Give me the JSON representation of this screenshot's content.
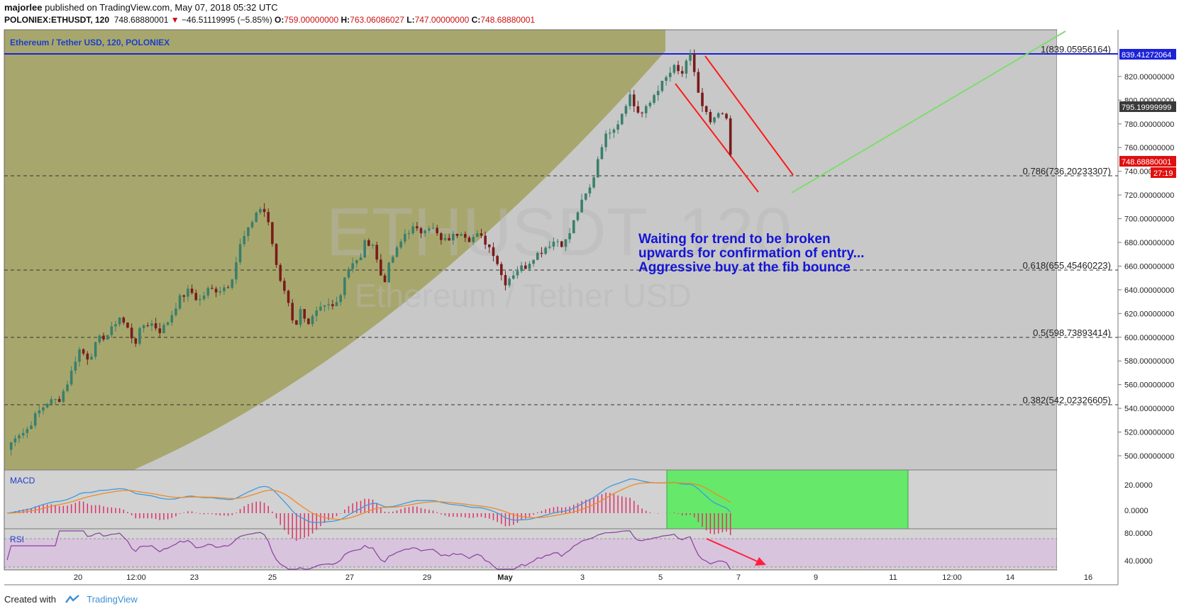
{
  "header": {
    "author": "majorlee",
    "published_text": "published on TradingView.com, May 07, 2018 05:32 UTC",
    "symbol": "POLONIEX:ETHUSDT, 120",
    "last": "748.68880001",
    "change_arrow": "▼",
    "change": "−46.51119995 (−5.85%)",
    "o_label": "O:",
    "o_value": "759.00000000",
    "h_label": "H:",
    "h_value": "763.06086027",
    "l_label": "L:",
    "l_value": "747.00000000",
    "c_label": "C:",
    "c_value": "748.68880001"
  },
  "chart_title": "Ethereum / Tether USD, 120, POLONIEX",
  "watermark": {
    "ticker": "ETHUSDT, 120",
    "name": "Ethereum / Tether USD"
  },
  "annotation": {
    "line1": "Waiting for trend to be broken",
    "line2": "upwards for confirmation of entry...",
    "line3": "Aggressive buy at the fib bounce"
  },
  "fib_levels": [
    {
      "label": "1(839.05956164)",
      "value": 839.06
    },
    {
      "label": "0.786(736.20233307)",
      "value": 736.2
    },
    {
      "label": "0.618(655.45460223)",
      "value": 655.45
    },
    {
      "label": "0.5(598.73893414)",
      "value": 598.74
    },
    {
      "label": "0.382(542.02326605)",
      "value": 542.02
    }
  ],
  "price_axis": {
    "ticks": [
      "820.00000000",
      "800.00000000",
      "780.00000000",
      "760.00000000",
      "740.00000000",
      "720.00000000",
      "700.00000000",
      "680.00000000",
      "660.00000000",
      "640.00000000",
      "620.00000000",
      "600.00000000",
      "580.00000000",
      "560.00000000",
      "540.00000000",
      "520.00000000",
      "500.00000000"
    ],
    "tag_high": "839.41272064",
    "tag_prev": "795.19999999",
    "tag_last": "748.68880001",
    "tag_countdown": "27:19"
  },
  "macd": {
    "label": "MACD",
    "ticks": [
      "20.0000",
      "0.0000"
    ]
  },
  "rsi": {
    "label": "RSI",
    "ticks": [
      "80.0000",
      "40.0000"
    ]
  },
  "time_axis": [
    "20",
    "12:00",
    "23",
    "25",
    "27",
    "29",
    "May",
    "3",
    "5",
    "7",
    "9",
    "11",
    "12:00",
    "14",
    "16"
  ],
  "footer": {
    "created_with": "Created with",
    "brand": "TradingView"
  },
  "colors": {
    "background": "#c8c8c8",
    "olive_fill": "#a7a76d",
    "candle_up": "#3a7f6c",
    "candle_down": "#7a1b1b",
    "annotation_text": "#1515d6",
    "channel_red": "#ff1a1a",
    "green_line": "#7fdc6e",
    "macd_line": "#3b9be0",
    "signal_line": "#f08a24",
    "histogram": "#e0306a",
    "rsi_line": "#8a3fa0",
    "rsi_band": "#d8c4dc",
    "green_box": "#66e86a",
    "high_line": "#1c22d8"
  },
  "chart_data": {
    "type": "candlestick",
    "title": "Ethereum / Tether USD, 120, POLONIEX",
    "ylim": [
      488,
      848
    ],
    "x_tick_labels": [
      "20",
      "12:00",
      "23",
      "25",
      "27",
      "29",
      "May",
      "3",
      "5",
      "7",
      "9",
      "11",
      "12:00",
      "14",
      "16"
    ],
    "close_series": [
      {
        "t": 0,
        "v": 505
      },
      {
        "t": 12,
        "v": 518
      },
      {
        "t": 25,
        "v": 520
      },
      {
        "t": 40,
        "v": 535
      },
      {
        "t": 55,
        "v": 545
      },
      {
        "t": 72,
        "v": 548
      },
      {
        "t": 85,
        "v": 565
      },
      {
        "t": 98,
        "v": 590
      },
      {
        "t": 112,
        "v": 582
      },
      {
        "t": 125,
        "v": 598
      },
      {
        "t": 140,
        "v": 603
      },
      {
        "t": 153,
        "v": 618
      },
      {
        "t": 165,
        "v": 607
      },
      {
        "t": 175,
        "v": 595
      },
      {
        "t": 185,
        "v": 610
      },
      {
        "t": 197,
        "v": 612
      },
      {
        "t": 210,
        "v": 605
      },
      {
        "t": 222,
        "v": 615
      },
      {
        "t": 235,
        "v": 632
      },
      {
        "t": 250,
        "v": 640
      },
      {
        "t": 262,
        "v": 630
      },
      {
        "t": 275,
        "v": 640
      },
      {
        "t": 290,
        "v": 640
      },
      {
        "t": 305,
        "v": 645
      },
      {
        "t": 312,
        "v": 660
      },
      {
        "t": 320,
        "v": 680
      },
      {
        "t": 330,
        "v": 690
      },
      {
        "t": 340,
        "v": 705
      },
      {
        "t": 350,
        "v": 710
      },
      {
        "t": 360,
        "v": 690
      },
      {
        "t": 366,
        "v": 668
      },
      {
        "t": 372,
        "v": 652
      },
      {
        "t": 380,
        "v": 640
      },
      {
        "t": 388,
        "v": 620
      },
      {
        "t": 395,
        "v": 610
      },
      {
        "t": 403,
        "v": 625
      },
      {
        "t": 410,
        "v": 605
      },
      {
        "t": 420,
        "v": 618
      },
      {
        "t": 430,
        "v": 625
      },
      {
        "t": 442,
        "v": 628
      },
      {
        "t": 455,
        "v": 632
      },
      {
        "t": 463,
        "v": 655
      },
      {
        "t": 470,
        "v": 660
      },
      {
        "t": 482,
        "v": 665
      },
      {
        "t": 490,
        "v": 680
      },
      {
        "t": 500,
        "v": 680
      },
      {
        "t": 508,
        "v": 660
      },
      {
        "t": 515,
        "v": 645
      },
      {
        "t": 525,
        "v": 665
      },
      {
        "t": 535,
        "v": 675
      },
      {
        "t": 545,
        "v": 688
      },
      {
        "t": 555,
        "v": 692
      },
      {
        "t": 565,
        "v": 688
      },
      {
        "t": 575,
        "v": 695
      },
      {
        "t": 585,
        "v": 690
      },
      {
        "t": 595,
        "v": 680
      },
      {
        "t": 610,
        "v": 685
      },
      {
        "t": 622,
        "v": 690
      },
      {
        "t": 632,
        "v": 683
      },
      {
        "t": 645,
        "v": 686
      },
      {
        "t": 655,
        "v": 680
      },
      {
        "t": 665,
        "v": 672
      },
      {
        "t": 673,
        "v": 660
      },
      {
        "t": 680,
        "v": 645
      },
      {
        "t": 690,
        "v": 652
      },
      {
        "t": 700,
        "v": 658
      },
      {
        "t": 710,
        "v": 660
      },
      {
        "t": 720,
        "v": 668
      },
      {
        "t": 730,
        "v": 672
      },
      {
        "t": 740,
        "v": 678
      },
      {
        "t": 752,
        "v": 682
      },
      {
        "t": 762,
        "v": 678
      },
      {
        "t": 770,
        "v": 688
      },
      {
        "t": 780,
        "v": 705
      },
      {
        "t": 790,
        "v": 718
      },
      {
        "t": 800,
        "v": 728
      },
      {
        "t": 808,
        "v": 750
      },
      {
        "t": 815,
        "v": 765
      },
      {
        "t": 825,
        "v": 775
      },
      {
        "t": 835,
        "v": 780
      },
      {
        "t": 845,
        "v": 795
      },
      {
        "t": 852,
        "v": 805
      },
      {
        "t": 860,
        "v": 792
      },
      {
        "t": 868,
        "v": 788
      },
      {
        "t": 878,
        "v": 795
      },
      {
        "t": 888,
        "v": 808
      },
      {
        "t": 898,
        "v": 815
      },
      {
        "t": 906,
        "v": 822
      },
      {
        "t": 914,
        "v": 828
      },
      {
        "t": 922,
        "v": 820
      },
      {
        "t": 928,
        "v": 828
      },
      {
        "t": 934,
        "v": 838
      },
      {
        "t": 938,
        "v": 833
      },
      {
        "t": 944,
        "v": 812
      },
      {
        "t": 950,
        "v": 795
      },
      {
        "t": 956,
        "v": 790
      },
      {
        "t": 963,
        "v": 778
      },
      {
        "t": 970,
        "v": 788
      },
      {
        "t": 977,
        "v": 784
      },
      {
        "t": 983,
        "v": 795
      },
      {
        "t": 987,
        "v": 762
      },
      {
        "t": 992,
        "v": 749
      }
    ],
    "annotations": [
      "Waiting for trend to be broken",
      "upwards for confirmation of entry...",
      "Aggressive buy at the fib bounce"
    ]
  }
}
